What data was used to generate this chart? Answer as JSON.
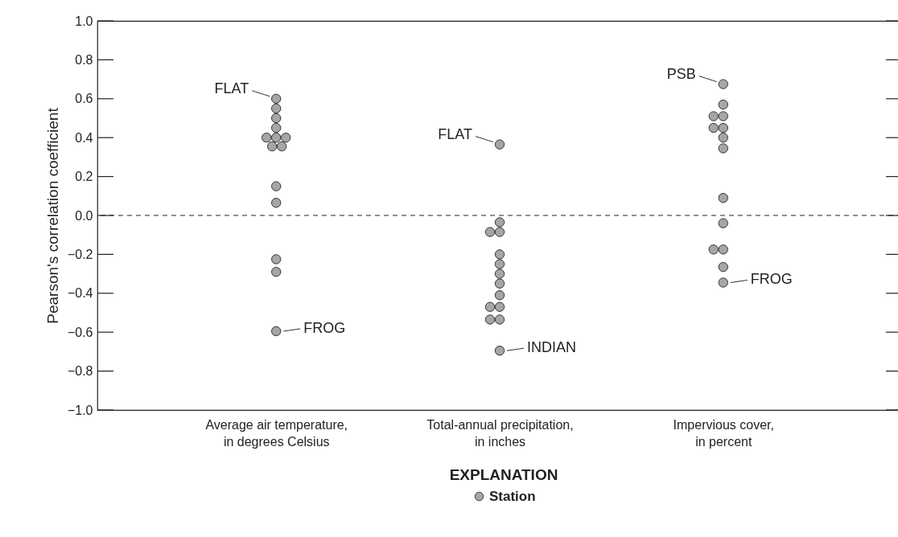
{
  "chart_data": {
    "type": "scatter",
    "ylabel": "Pearson's correlation coefficient",
    "legend_title": "EXPLANATION",
    "categories": [
      "Average air temperature,\nin degrees Celsius",
      "Total-annual precipitation,\nin inches",
      "Impervious cover,\nin percent"
    ],
    "ylim": [
      -1.0,
      1.0
    ],
    "yticks": [
      {
        "value": -1.0,
        "label": "−1.0"
      },
      {
        "value": -0.8,
        "label": "−0.8"
      },
      {
        "value": -0.6,
        "label": "−0.6"
      },
      {
        "value": -0.4,
        "label": "−0.4"
      },
      {
        "value": -0.2,
        "label": "−0.2"
      },
      {
        "value": 0.0,
        "label": "0.0"
      },
      {
        "value": 0.2,
        "label": "0.2"
      },
      {
        "value": 0.4,
        "label": "0.4"
      },
      {
        "value": 0.6,
        "label": "0.6"
      },
      {
        "value": 0.8,
        "label": "0.8"
      },
      {
        "value": 1.0,
        "label": "1.0"
      }
    ],
    "grid": false,
    "legend": "bottom",
    "marker": "circle",
    "series": [
      {
        "name": "Station",
        "color": "#a6a6a6",
        "x": [
          "Average air temperature,\nin degrees Celsius",
          "Average air temperature,\nin degrees Celsius",
          "Average air temperature,\nin degrees Celsius",
          "Average air temperature,\nin degrees Celsius",
          "Average air temperature,\nin degrees Celsius",
          "Average air temperature,\nin degrees Celsius",
          "Average air temperature,\nin degrees Celsius",
          "Average air temperature,\nin degrees Celsius",
          "Average air temperature,\nin degrees Celsius",
          "Average air temperature,\nin degrees Celsius",
          "Average air temperature,\nin degrees Celsius",
          "Average air temperature,\nin degrees Celsius",
          "Average air temperature,\nin degrees Celsius",
          "Average air temperature,\nin degrees Celsius",
          "Total-annual precipitation,\nin inches",
          "Total-annual precipitation,\nin inches",
          "Total-annual precipitation,\nin inches",
          "Total-annual precipitation,\nin inches",
          "Total-annual precipitation,\nin inches",
          "Total-annual precipitation,\nin inches",
          "Total-annual precipitation,\nin inches",
          "Total-annual precipitation,\nin inches",
          "Total-annual precipitation,\nin inches",
          "Total-annual precipitation,\nin inches",
          "Total-annual precipitation,\nin inches",
          "Total-annual precipitation,\nin inches",
          "Total-annual precipitation,\nin inches",
          "Total-annual precipitation,\nin inches",
          "Impervious cover,\nin percent",
          "Impervious cover,\nin percent",
          "Impervious cover,\nin percent",
          "Impervious cover,\nin percent",
          "Impervious cover,\nin percent",
          "Impervious cover,\nin percent",
          "Impervious cover,\nin percent",
          "Impervious cover,\nin percent",
          "Impervious cover,\nin percent",
          "Impervious cover,\nin percent",
          "Impervious cover,\nin percent",
          "Impervious cover,\nin percent",
          "Impervious cover,\nin percent",
          "Impervious cover,\nin percent"
        ],
        "values": [
          0.6,
          0.55,
          0.5,
          0.45,
          0.4,
          0.4,
          0.4,
          0.355,
          0.355,
          0.15,
          0.065,
          -0.225,
          -0.29,
          -0.595,
          0.365,
          -0.035,
          -0.085,
          -0.085,
          -0.2,
          -0.25,
          -0.3,
          -0.35,
          -0.41,
          -0.47,
          -0.47,
          -0.535,
          -0.535,
          -0.695,
          0.675,
          0.57,
          0.51,
          0.51,
          0.45,
          0.45,
          0.4,
          0.345,
          0.09,
          -0.04,
          -0.175,
          -0.175,
          -0.265,
          -0.345
        ]
      }
    ],
    "ref_lines": [
      {
        "axis": "y",
        "value": 0.0,
        "line_style": "dashed"
      }
    ],
    "annotations": [
      {
        "text": "FLAT",
        "x": "Average air temperature,\nin degrees Celsius",
        "y": 0.6
      },
      {
        "text": "FROG",
        "x": "Average air temperature,\nin degrees Celsius",
        "y": -0.595
      },
      {
        "text": "FLAT",
        "x": "Total-annual precipitation,\nin inches",
        "y": 0.365
      },
      {
        "text": "INDIAN",
        "x": "Total-annual precipitation,\nin inches",
        "y": -0.695
      },
      {
        "text": "PSB",
        "x": "Impervious cover,\nin percent",
        "y": 0.675
      },
      {
        "text": "FROG",
        "x": "Impervious cover,\nin percent",
        "y": -0.345
      }
    ]
  }
}
